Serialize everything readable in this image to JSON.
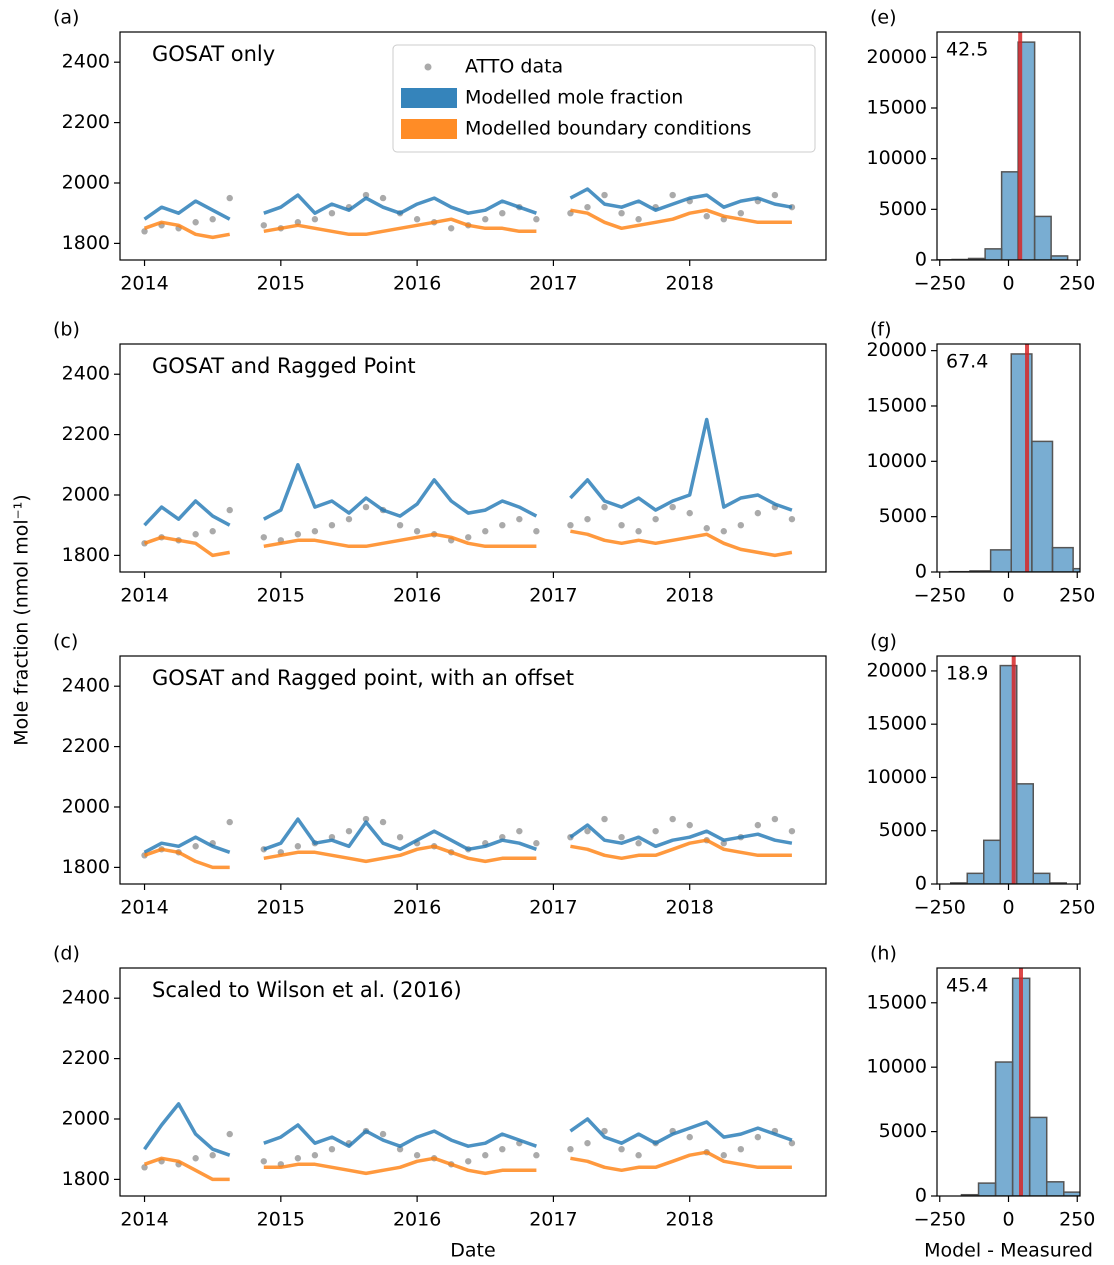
{
  "chart_data": [
    {
      "type": "line",
      "panel_label": "(a)",
      "title": "GOSAT only",
      "title_color": "#141b5c",
      "ylabel": "Mole fraction (nmol mol⁻¹)",
      "legend": "upper center",
      "x": [
        2014.0,
        2014.125,
        2014.25,
        2014.375,
        2014.5,
        2014.625,
        2014.75,
        2014.875,
        2015.0,
        2015.125,
        2015.25,
        2015.375,
        2015.5,
        2015.625,
        2015.75,
        2015.875,
        2016.0,
        2016.125,
        2016.25,
        2016.375,
        2016.5,
        2016.625,
        2016.75,
        2016.875,
        2017.0,
        2017.125,
        2017.25,
        2017.375,
        2017.5,
        2017.625,
        2017.75,
        2017.875,
        2018.0,
        2018.125,
        2018.25,
        2018.375,
        2018.5,
        2018.625,
        2018.75
      ],
      "xlim": [
        2013.82,
        2019.0
      ],
      "xticks": [
        2014,
        2015,
        2016,
        2017,
        2018
      ],
      "ylim": [
        1745,
        2500
      ],
      "yticks": [
        1800,
        2000,
        2200,
        2400
      ],
      "series": [
        {
          "name": "ATTO data",
          "color": "#aaaaaa",
          "marker": "o",
          "values": [
            1840,
            1860,
            1850,
            1870,
            1880,
            1950,
            null,
            1860,
            1850,
            1870,
            1880,
            1900,
            1920,
            1960,
            1950,
            1900,
            1880,
            1870,
            1850,
            1860,
            1880,
            1900,
            1920,
            1880,
            null,
            1900,
            1920,
            1960,
            1900,
            1880,
            1920,
            1960,
            1940,
            1890,
            1880,
            1900,
            1940,
            1960,
            1920
          ]
        },
        {
          "name": "Modelled mole fraction",
          "color": "#1f77b4",
          "values": [
            1880,
            1920,
            1900,
            1940,
            1910,
            1880,
            null,
            1900,
            1920,
            1960,
            1900,
            1930,
            1910,
            1950,
            1920,
            1900,
            1930,
            1950,
            1920,
            1900,
            1910,
            1940,
            1920,
            1900,
            null,
            1950,
            1980,
            1930,
            1920,
            1940,
            1910,
            1930,
            1950,
            1960,
            1920,
            1940,
            1950,
            1930,
            1920
          ]
        },
        {
          "name": "Modelled boundary conditions",
          "color": "#ff7f0e",
          "values": [
            1850,
            1870,
            1860,
            1830,
            1820,
            1830,
            null,
            1840,
            1850,
            1860,
            1850,
            1840,
            1830,
            1830,
            1840,
            1850,
            1860,
            1870,
            1880,
            1860,
            1850,
            1850,
            1840,
            1840,
            null,
            1910,
            1900,
            1870,
            1850,
            1860,
            1870,
            1880,
            1900,
            1910,
            1890,
            1880,
            1870,
            1870,
            1870
          ]
        }
      ]
    },
    {
      "type": "line",
      "panel_label": "(b)",
      "title": "GOSAT and Ragged Point",
      "title_color": "#141b5c",
      "x": [
        2014.0,
        2014.125,
        2014.25,
        2014.375,
        2014.5,
        2014.625,
        2014.75,
        2014.875,
        2015.0,
        2015.125,
        2015.25,
        2015.375,
        2015.5,
        2015.625,
        2015.75,
        2015.875,
        2016.0,
        2016.125,
        2016.25,
        2016.375,
        2016.5,
        2016.625,
        2016.75,
        2016.875,
        2017.0,
        2017.125,
        2017.25,
        2017.375,
        2017.5,
        2017.625,
        2017.75,
        2017.875,
        2018.0,
        2018.125,
        2018.25,
        2018.375,
        2018.5,
        2018.625,
        2018.75
      ],
      "xlim": [
        2013.82,
        2019.0
      ],
      "xticks": [
        2014,
        2015,
        2016,
        2017,
        2018
      ],
      "ylim": [
        1745,
        2500
      ],
      "yticks": [
        1800,
        2000,
        2200,
        2400
      ],
      "series": [
        {
          "color": "#aaaaaa",
          "marker": "o",
          "values": [
            1840,
            1860,
            1850,
            1870,
            1880,
            1950,
            null,
            1860,
            1850,
            1870,
            1880,
            1900,
            1920,
            1960,
            1950,
            1900,
            1880,
            1870,
            1850,
            1860,
            1880,
            1900,
            1920,
            1880,
            null,
            1900,
            1920,
            1960,
            1900,
            1880,
            1920,
            1960,
            1940,
            1890,
            1880,
            1900,
            1940,
            1960,
            1920
          ]
        },
        {
          "color": "#1f77b4",
          "values": [
            1900,
            1960,
            1920,
            1980,
            1930,
            1900,
            null,
            1920,
            1950,
            2100,
            1960,
            1980,
            1940,
            1990,
            1950,
            1930,
            1970,
            2050,
            1980,
            1940,
            1950,
            1980,
            1960,
            1930,
            null,
            1990,
            2050,
            1980,
            1960,
            1990,
            1950,
            1980,
            2000,
            2250,
            1960,
            1990,
            2000,
            1970,
            1950
          ]
        },
        {
          "color": "#ff7f0e",
          "values": [
            1840,
            1860,
            1850,
            1840,
            1800,
            1810,
            null,
            1830,
            1840,
            1850,
            1850,
            1840,
            1830,
            1830,
            1840,
            1850,
            1860,
            1870,
            1860,
            1840,
            1830,
            1830,
            1830,
            1830,
            null,
            1880,
            1870,
            1850,
            1840,
            1850,
            1840,
            1850,
            1860,
            1870,
            1840,
            1820,
            1810,
            1800,
            1810
          ]
        }
      ]
    },
    {
      "type": "line",
      "panel_label": "(c)",
      "title": "GOSAT and Ragged point, with an offset",
      "title_color": "#141b5c",
      "x": [
        2014.0,
        2014.125,
        2014.25,
        2014.375,
        2014.5,
        2014.625,
        2014.75,
        2014.875,
        2015.0,
        2015.125,
        2015.25,
        2015.375,
        2015.5,
        2015.625,
        2015.75,
        2015.875,
        2016.0,
        2016.125,
        2016.25,
        2016.375,
        2016.5,
        2016.625,
        2016.75,
        2016.875,
        2017.0,
        2017.125,
        2017.25,
        2017.375,
        2017.5,
        2017.625,
        2017.75,
        2017.875,
        2018.0,
        2018.125,
        2018.25,
        2018.375,
        2018.5,
        2018.625,
        2018.75
      ],
      "xlim": [
        2013.82,
        2019.0
      ],
      "xticks": [
        2014,
        2015,
        2016,
        2017,
        2018
      ],
      "ylim": [
        1745,
        2500
      ],
      "yticks": [
        1800,
        2000,
        2200,
        2400
      ],
      "series": [
        {
          "color": "#aaaaaa",
          "marker": "o",
          "values": [
            1840,
            1860,
            1850,
            1870,
            1880,
            1950,
            null,
            1860,
            1850,
            1870,
            1880,
            1900,
            1920,
            1960,
            1950,
            1900,
            1880,
            1870,
            1850,
            1860,
            1880,
            1900,
            1920,
            1880,
            null,
            1900,
            1920,
            1960,
            1900,
            1880,
            1920,
            1960,
            1940,
            1890,
            1880,
            1900,
            1940,
            1960,
            1920
          ]
        },
        {
          "color": "#1f77b4",
          "values": [
            1850,
            1880,
            1870,
            1900,
            1870,
            1850,
            null,
            1860,
            1880,
            1960,
            1880,
            1890,
            1870,
            1950,
            1880,
            1860,
            1890,
            1920,
            1890,
            1860,
            1870,
            1890,
            1880,
            1860,
            null,
            1900,
            1940,
            1890,
            1880,
            1900,
            1870,
            1890,
            1900,
            1920,
            1890,
            1900,
            1910,
            1890,
            1880
          ]
        },
        {
          "color": "#ff7f0e",
          "values": [
            1840,
            1860,
            1850,
            1820,
            1800,
            1800,
            null,
            1830,
            1840,
            1850,
            1850,
            1840,
            1830,
            1820,
            1830,
            1840,
            1860,
            1870,
            1850,
            1830,
            1820,
            1830,
            1830,
            1830,
            null,
            1870,
            1860,
            1840,
            1830,
            1840,
            1840,
            1860,
            1880,
            1890,
            1860,
            1850,
            1840,
            1840,
            1840
          ]
        }
      ]
    },
    {
      "type": "line",
      "panel_label": "(d)",
      "title": "Scaled to Wilson et al. (2016)",
      "title_color": "#1a6b14",
      "xlabel": "Date",
      "x": [
        2014.0,
        2014.125,
        2014.25,
        2014.375,
        2014.5,
        2014.625,
        2014.75,
        2014.875,
        2015.0,
        2015.125,
        2015.25,
        2015.375,
        2015.5,
        2015.625,
        2015.75,
        2015.875,
        2016.0,
        2016.125,
        2016.25,
        2016.375,
        2016.5,
        2016.625,
        2016.75,
        2016.875,
        2017.0,
        2017.125,
        2017.25,
        2017.375,
        2017.5,
        2017.625,
        2017.75,
        2017.875,
        2018.0,
        2018.125,
        2018.25,
        2018.375,
        2018.5,
        2018.625,
        2018.75
      ],
      "xlim": [
        2013.82,
        2019.0
      ],
      "xticks": [
        2014,
        2015,
        2016,
        2017,
        2018
      ],
      "ylim": [
        1745,
        2500
      ],
      "yticks": [
        1800,
        2000,
        2200,
        2400
      ],
      "series": [
        {
          "color": "#aaaaaa",
          "marker": "o",
          "values": [
            1840,
            1860,
            1850,
            1870,
            1880,
            1950,
            null,
            1860,
            1850,
            1870,
            1880,
            1900,
            1920,
            1960,
            1950,
            1900,
            1880,
            1870,
            1850,
            1860,
            1880,
            1900,
            1920,
            1880,
            null,
            1900,
            1920,
            1960,
            1900,
            1880,
            1920,
            1960,
            1940,
            1890,
            1880,
            1900,
            1940,
            1960,
            1920
          ]
        },
        {
          "color": "#1f77b4",
          "values": [
            1900,
            1980,
            2050,
            1950,
            1900,
            1880,
            null,
            1920,
            1940,
            1980,
            1920,
            1940,
            1910,
            1960,
            1930,
            1910,
            1940,
            1960,
            1930,
            1910,
            1920,
            1950,
            1930,
            1910,
            null,
            1960,
            2000,
            1940,
            1920,
            1950,
            1920,
            1950,
            1970,
            1990,
            1940,
            1950,
            1970,
            1950,
            1930
          ]
        },
        {
          "color": "#ff7f0e",
          "values": [
            1850,
            1870,
            1860,
            1830,
            1800,
            1800,
            null,
            1840,
            1840,
            1850,
            1850,
            1840,
            1830,
            1820,
            1830,
            1840,
            1860,
            1870,
            1850,
            1830,
            1820,
            1830,
            1830,
            1830,
            null,
            1870,
            1860,
            1840,
            1830,
            1840,
            1840,
            1860,
            1880,
            1890,
            1860,
            1850,
            1840,
            1840,
            1840
          ]
        }
      ]
    },
    {
      "type": "histogram",
      "panel_label": "(e)",
      "color": "#1f77b4",
      "mean": 42.5,
      "mean_color": "#d62728",
      "bins": [
        -265,
        -205,
        -145,
        -85,
        -25,
        35,
        95,
        155,
        215
      ],
      "counts": [
        20,
        50,
        150,
        1100,
        8700,
        21500,
        4300,
        400
      ],
      "xlim": [
        -260,
        260
      ],
      "xticks": [
        {
          "value": -250,
          "label": "−250"
        },
        0,
        250
      ],
      "ylim": [
        0,
        22500
      ],
      "yticks": [
        0,
        5000,
        10000,
        15000,
        20000
      ]
    },
    {
      "type": "histogram",
      "panel_label": "(f)",
      "color": "#1f77b4",
      "mean": 67.4,
      "mean_color": "#d62728",
      "bins": [
        -215,
        -140,
        -65,
        10,
        85,
        160,
        235,
        310
      ],
      "counts": [
        30,
        100,
        2000,
        19700,
        11800,
        2200,
        300
      ],
      "xlim": [
        -260,
        260
      ],
      "xticks": [
        {
          "value": -250,
          "label": "−250"
        },
        0,
        250
      ],
      "ylim": [
        0,
        20600
      ],
      "yticks": [
        0,
        5000,
        10000,
        15000,
        20000
      ]
    },
    {
      "type": "histogram",
      "panel_label": "(g)",
      "color": "#1f77b4",
      "mean": 18.9,
      "mean_color": "#d62728",
      "bins": [
        -210,
        -150,
        -90,
        -30,
        30,
        90,
        150,
        210
      ],
      "counts": [
        100,
        1000,
        4100,
        20500,
        9400,
        1000,
        100
      ],
      "xlim": [
        -260,
        260
      ],
      "xticks": [
        {
          "value": -250,
          "label": "−250"
        },
        0,
        250
      ],
      "ylim": [
        0,
        21400
      ],
      "yticks": [
        0,
        5000,
        10000,
        15000,
        20000
      ]
    },
    {
      "type": "histogram",
      "panel_label": "(h)",
      "color": "#1f77b4",
      "mean": 45.4,
      "mean_color": "#d62728",
      "xlabel": "Model - Measured",
      "bins": [
        -171,
        -109,
        -47,
        15,
        77,
        139,
        201,
        263
      ],
      "counts": [
        100,
        1000,
        10400,
        16900,
        6100,
        1100,
        300
      ],
      "xlim": [
        -260,
        260
      ],
      "xticks": [
        {
          "value": -250,
          "label": "−250"
        },
        0,
        250
      ],
      "ylim": [
        0,
        17700
      ],
      "yticks": [
        0,
        5000,
        10000,
        15000
      ]
    }
  ]
}
